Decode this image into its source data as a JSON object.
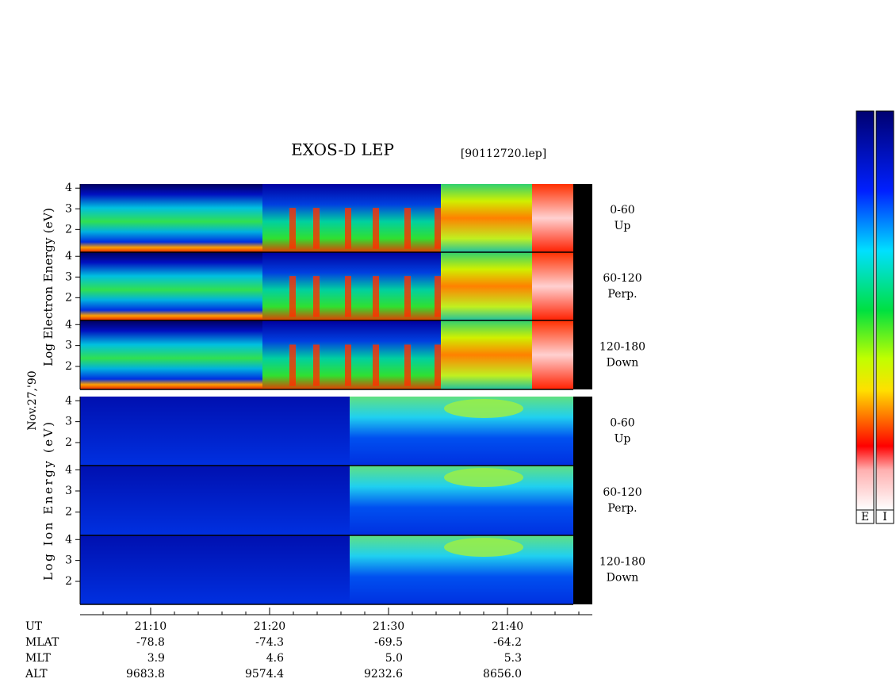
{
  "chart_data": {
    "type": "spectrogram",
    "title": "EXOS-D LEP",
    "subtitle": "[90112720.lep]",
    "date": "Nov.27,'90",
    "y_labels": [
      "Log Electron Energy (eV)",
      "Log Ion Energy (eV)"
    ],
    "panels": [
      {
        "pitch": "0-60",
        "dir": "Up"
      },
      {
        "pitch": "60-120",
        "dir": "Perp."
      },
      {
        "pitch": "120-180",
        "dir": "Down"
      },
      {
        "pitch": "0-60",
        "dir": "Up"
      },
      {
        "pitch": "60-120",
        "dir": "Perp."
      },
      {
        "pitch": "120-180",
        "dir": "Down"
      }
    ],
    "ylim": [
      0.9,
      4.2
    ],
    "yticks": [
      2,
      3,
      4
    ],
    "xlim": [
      1264.07,
      1307.13
    ],
    "xticks": [
      {
        "value": 1270,
        "label": "21:10"
      },
      {
        "value": 1280,
        "label": "21:20"
      },
      {
        "value": 1290,
        "label": "21:30"
      },
      {
        "value": 1300,
        "label": "21:40"
      }
    ],
    "orbit": [
      {
        "label": "UT"
      },
      {
        "label": "MLAT",
        "values": [
          "-78.8",
          "-74.3",
          "-69.5",
          "-64.2"
        ]
      },
      {
        "label": "MLT",
        "values": [
          "3.9",
          "4.6",
          "5.0",
          "5.3"
        ]
      },
      {
        "label": "ALT",
        "values": [
          "9683.8",
          "9574.4",
          "9232.6",
          "8656.0"
        ]
      }
    ],
    "colorbars": [
      "E",
      "I"
    ]
  }
}
